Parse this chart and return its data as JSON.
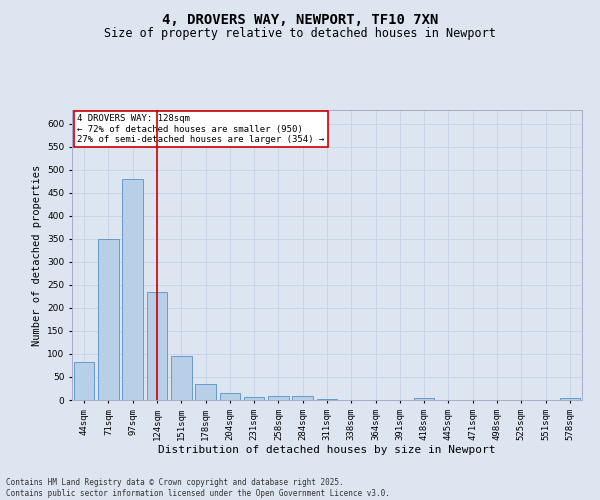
{
  "title_line1": "4, DROVERS WAY, NEWPORT, TF10 7XN",
  "title_line2": "Size of property relative to detached houses in Newport",
  "xlabel": "Distribution of detached houses by size in Newport",
  "ylabel": "Number of detached properties",
  "categories": [
    "44sqm",
    "71sqm",
    "97sqm",
    "124sqm",
    "151sqm",
    "178sqm",
    "204sqm",
    "231sqm",
    "258sqm",
    "284sqm",
    "311sqm",
    "338sqm",
    "364sqm",
    "391sqm",
    "418sqm",
    "445sqm",
    "471sqm",
    "498sqm",
    "525sqm",
    "551sqm",
    "578sqm"
  ],
  "values": [
    83,
    350,
    480,
    235,
    95,
    35,
    15,
    7,
    8,
    8,
    3,
    0,
    0,
    0,
    4,
    0,
    0,
    0,
    0,
    0,
    4
  ],
  "bar_color": "#b8cfe8",
  "bar_edge_color": "#6699cc",
  "vline_x_index": 3,
  "vline_color": "#cc0000",
  "annotation_text": "4 DROVERS WAY: 128sqm\n← 72% of detached houses are smaller (950)\n27% of semi-detached houses are larger (354) →",
  "annotation_box_facecolor": "#ffffff",
  "annotation_box_edgecolor": "#cc0000",
  "grid_color": "#c8d4e8",
  "background_color": "#dde6f0",
  "plot_bg_color": "#dde6f0",
  "ylim": [
    0,
    630
  ],
  "yticks": [
    0,
    50,
    100,
    150,
    200,
    250,
    300,
    350,
    400,
    450,
    500,
    550,
    600
  ],
  "footer_line1": "Contains HM Land Registry data © Crown copyright and database right 2025.",
  "footer_line2": "Contains public sector information licensed under the Open Government Licence v3.0.",
  "title1_fontsize": 10,
  "title2_fontsize": 8.5,
  "xlabel_fontsize": 8,
  "ylabel_fontsize": 7.5,
  "tick_fontsize": 6.5,
  "annotation_fontsize": 6.5,
  "footer_fontsize": 5.5
}
